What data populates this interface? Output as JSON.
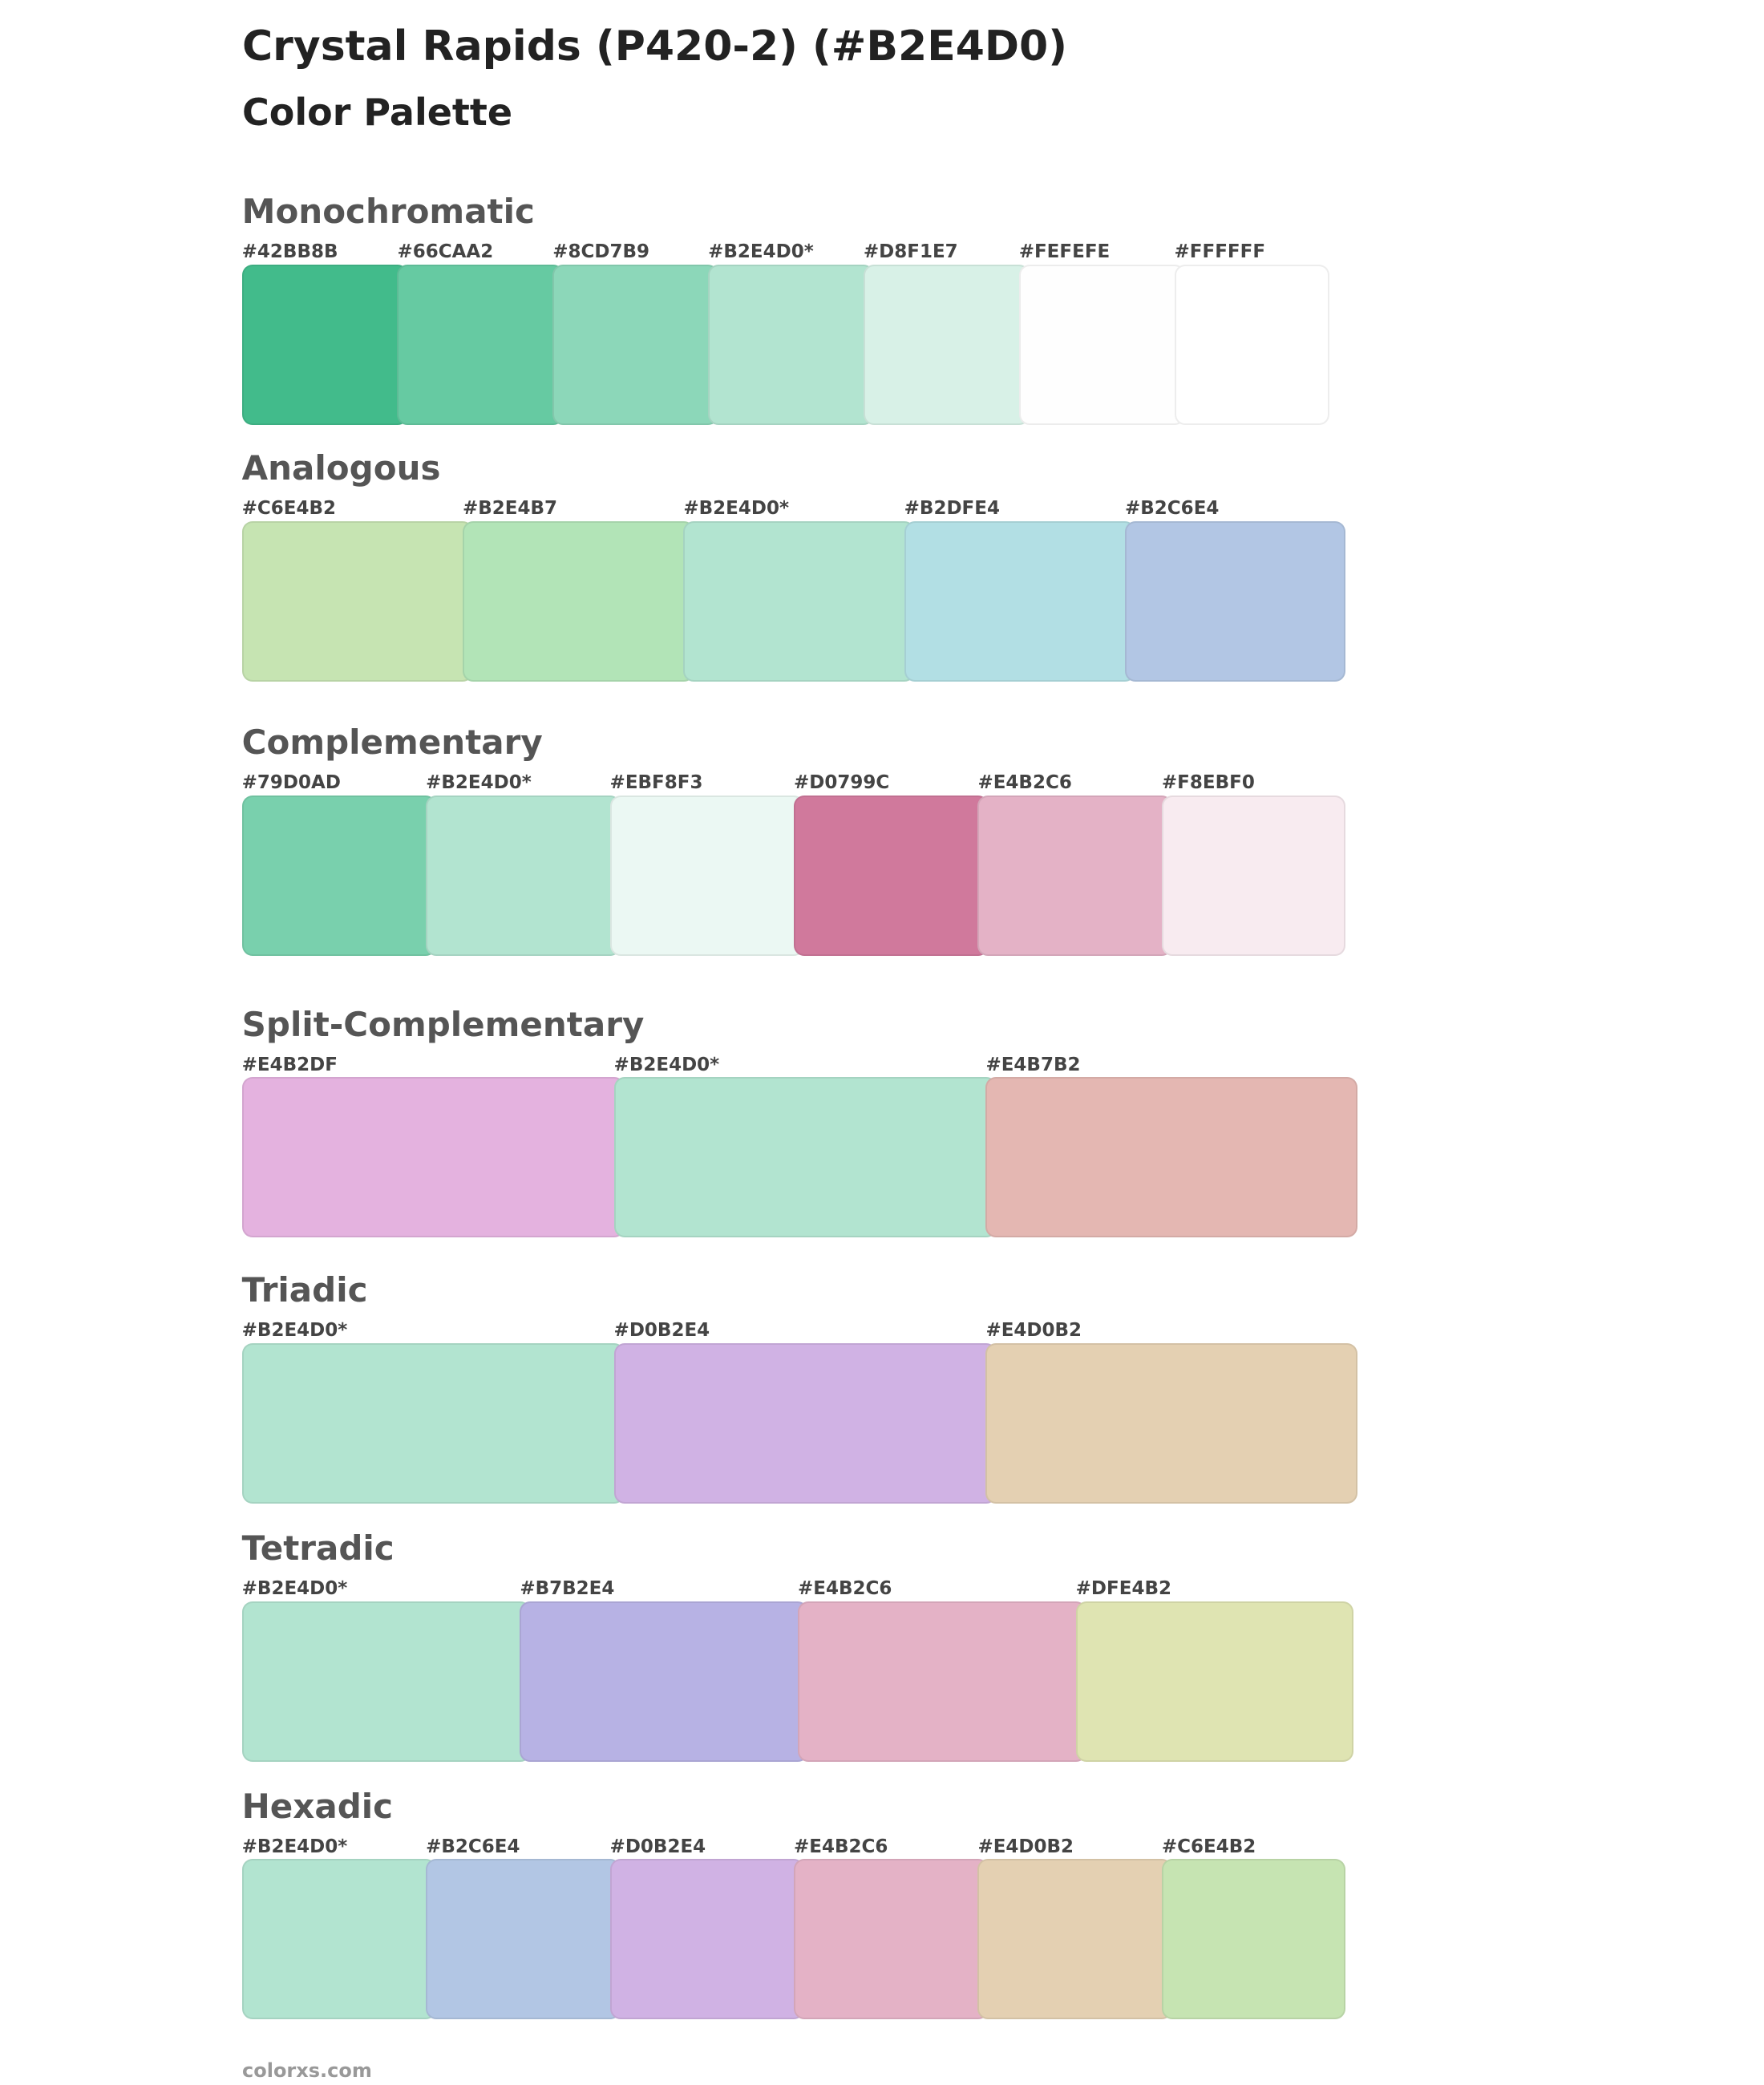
{
  "header": {
    "title": "Crystal Rapids (P420-2) (#B2E4D0)",
    "subtitle": "Color Palette"
  },
  "sections": [
    {
      "name": "Monochromatic",
      "swatches": [
        "#42BB8B",
        "#66CAA2",
        "#8CD7B9",
        "#B2E4D0*",
        "#D8F1E7",
        "#FEFEFE",
        "#FFFFFF"
      ]
    },
    {
      "name": "Analogous",
      "swatches": [
        "#C6E4B2",
        "#B2E4B7",
        "#B2E4D0*",
        "#B2DFE4",
        "#B2C6E4"
      ]
    },
    {
      "name": "Complementary",
      "swatches": [
        "#79D0AD",
        "#B2E4D0*",
        "#EBF8F3",
        "#D0799C",
        "#E4B2C6",
        "#F8EBF0"
      ]
    },
    {
      "name": "Split-Complementary",
      "swatches": [
        "#E4B2DF",
        "#B2E4D0*",
        "#E4B7B2"
      ]
    },
    {
      "name": "Triadic",
      "swatches": [
        "#B2E4D0*",
        "#D0B2E4",
        "#E4D0B2"
      ]
    },
    {
      "name": "Tetradic",
      "swatches": [
        "#B2E4D0*",
        "#B7B2E4",
        "#E4B2C6",
        "#DFE4B2"
      ]
    },
    {
      "name": "Hexadic",
      "swatches": [
        "#B2E4D0*",
        "#B2C6E4",
        "#D0B2E4",
        "#E4B2C6",
        "#E4D0B2",
        "#C6E4B2"
      ]
    }
  ],
  "footer": {
    "site": "colorxs.com"
  }
}
